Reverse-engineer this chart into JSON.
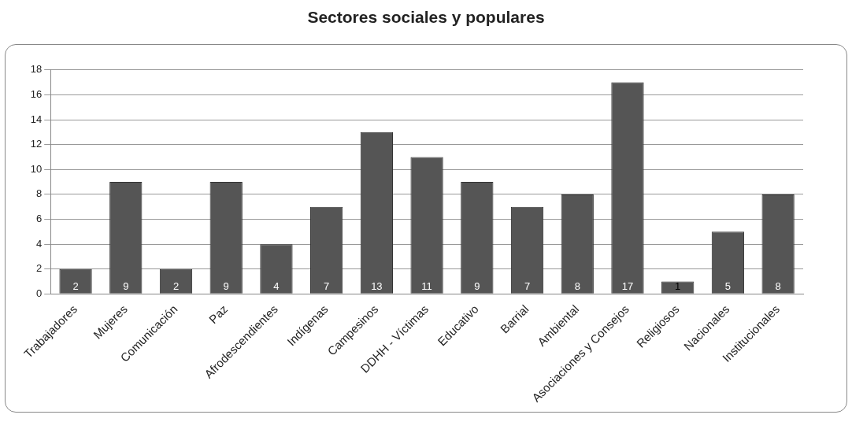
{
  "chart_data": {
    "type": "bar",
    "title": "Sectores sociales y populares",
    "categories": [
      "Trabajadores",
      "Mujeres",
      "Comunicación",
      "Paz",
      "Afrodescendientes",
      "Indígenas",
      "Campesinos",
      "DDHH - Víctimas",
      "Educativo",
      "Barrial",
      "Ambiental",
      "Asociaciones y Consejos",
      "Religiosos",
      "Nacionales",
      "Institucionales"
    ],
    "values": [
      2,
      9,
      2,
      9,
      4,
      7,
      13,
      11,
      9,
      7,
      8,
      17,
      1,
      5,
      8
    ],
    "color": "#555555",
    "ylim": [
      0,
      18
    ],
    "yticks": [
      0,
      2,
      4,
      6,
      8,
      10,
      12,
      14,
      16,
      18
    ],
    "grid": "y",
    "data_labels": true,
    "legend": false
  }
}
